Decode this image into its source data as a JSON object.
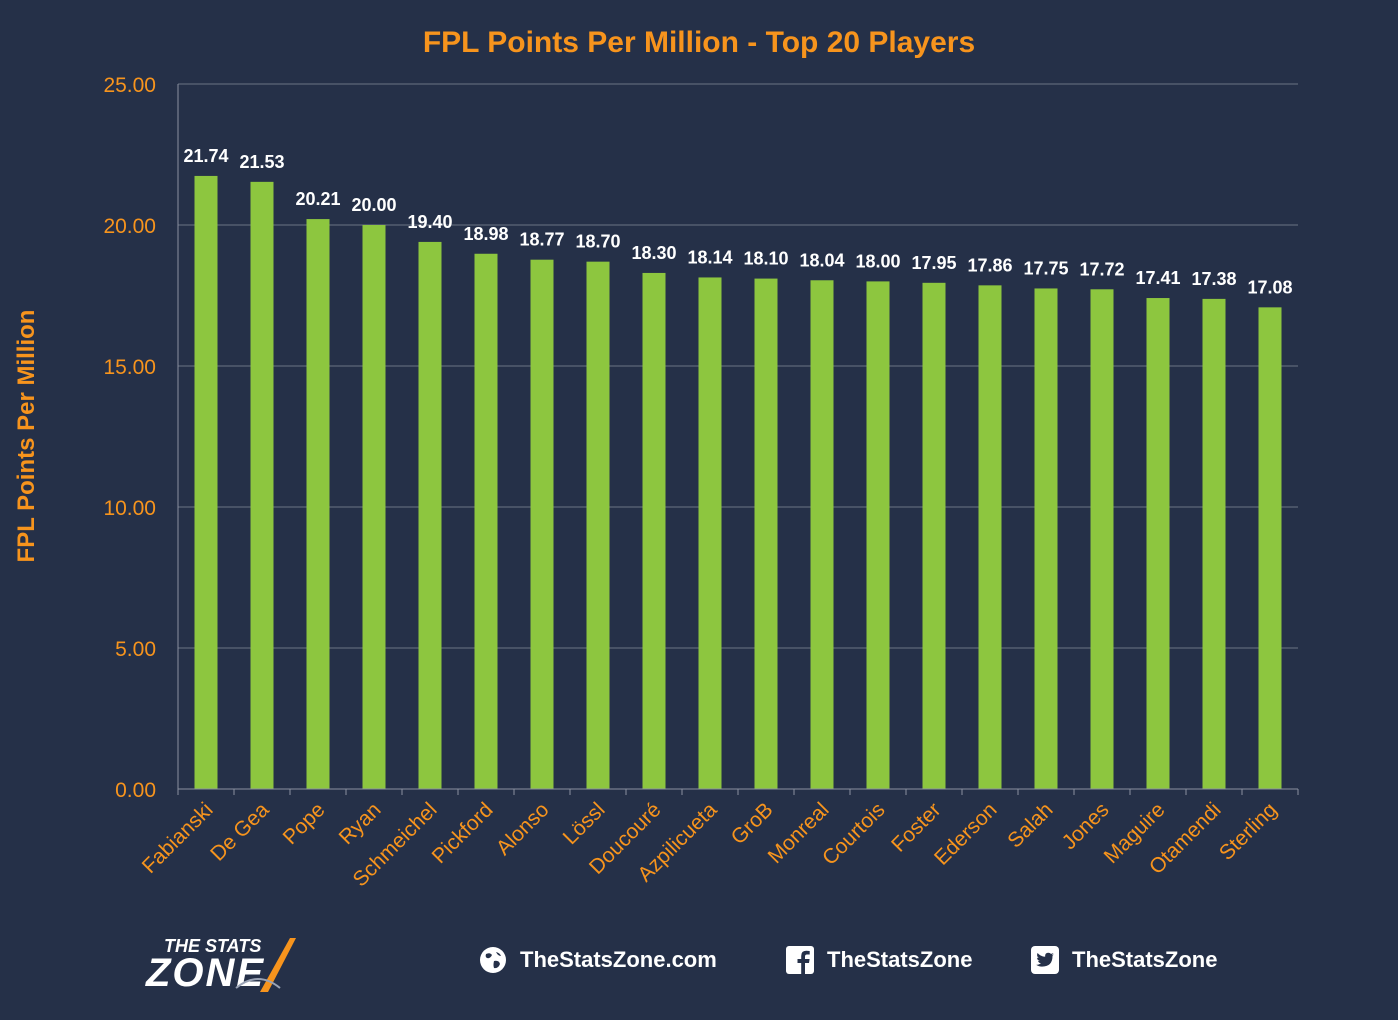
{
  "chart_data": {
    "type": "bar",
    "title": "FPL Points Per Million - Top 20 Players",
    "ylabel": "FPL Points Per Million",
    "xlabel": "",
    "ylim": [
      0,
      25
    ],
    "yticks": [
      "0.00",
      "5.00",
      "10.00",
      "15.00",
      "20.00",
      "25.00"
    ],
    "grid": true,
    "categories": [
      "Fabianski",
      "De Gea",
      "Pope",
      "Ryan",
      "Schmeichel",
      "Pickford",
      "Alonso",
      "Lössl",
      "Doucouré",
      "Azpilicueta",
      "GroB",
      "Monreal",
      "Courtois",
      "Foster",
      "Ederson",
      "Salah",
      "Jones",
      "Maguire",
      "Otamendi",
      "Sterling"
    ],
    "values": [
      21.74,
      21.53,
      20.21,
      20.0,
      19.4,
      18.98,
      18.77,
      18.7,
      18.3,
      18.14,
      18.1,
      18.04,
      18.0,
      17.95,
      17.86,
      17.75,
      17.72,
      17.41,
      17.38,
      17.08
    ],
    "value_labels": [
      "21.74",
      "21.53",
      "20.21",
      "20.00",
      "19.40",
      "18.98",
      "18.77",
      "18.70",
      "18.30",
      "18.14",
      "18.10",
      "18.04",
      "18.00",
      "17.95",
      "17.86",
      "17.75",
      "17.72",
      "17.41",
      "17.38",
      "17.08"
    ]
  },
  "colors": {
    "background": "#253048",
    "bar": "#8dc63f",
    "accent": "#f7941d",
    "grid": "#6b7385",
    "label": "#ffffff"
  },
  "footer": {
    "logo_top": "THE STATS",
    "logo_bottom": "ZONE",
    "website": "TheStatsZone.com",
    "website_icon": "globe-icon",
    "facebook": "TheStatsZone",
    "facebook_icon": "facebook-icon",
    "twitter": "TheStatsZone",
    "twitter_icon": "twitter-icon"
  }
}
